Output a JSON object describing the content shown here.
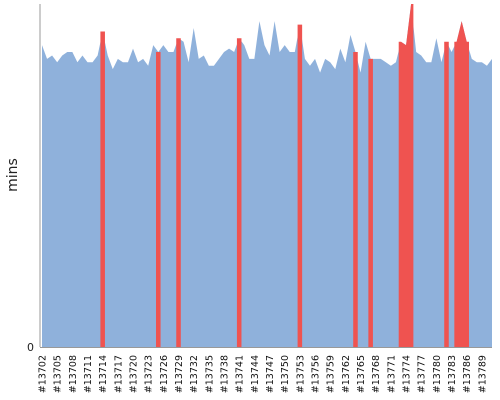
{
  "chart_data": {
    "type": "area",
    "ylabel": "mins",
    "y_ticks": [
      "0"
    ],
    "ylim": [
      0,
      100
    ],
    "colors": {
      "success": "#8fb1db",
      "failure": "#ef5350",
      "axis": "#999999"
    },
    "legend": "none",
    "grid": false,
    "x_tick_labels": [
      "#13702",
      "#13705",
      "#13708",
      "#13711",
      "#13714",
      "#13717",
      "#13720",
      "#13723",
      "#13726",
      "#13729",
      "#13732",
      "#13735",
      "#13738",
      "#13741",
      "#13744",
      "#13747",
      "#13750",
      "#13753",
      "#13756",
      "#13759",
      "#13762",
      "#13765",
      "#13768",
      "#13771",
      "#13774",
      "#13777",
      "#13780",
      "#13783",
      "#13786",
      "#13789"
    ],
    "builds": [
      13702,
      13703,
      13704,
      13705,
      13706,
      13707,
      13708,
      13709,
      13710,
      13711,
      13712,
      13713,
      13714,
      13715,
      13716,
      13717,
      13718,
      13719,
      13720,
      13721,
      13722,
      13723,
      13724,
      13725,
      13726,
      13727,
      13728,
      13729,
      13730,
      13731,
      13732,
      13733,
      13734,
      13735,
      13736,
      13737,
      13738,
      13739,
      13740,
      13741,
      13742,
      13743,
      13744,
      13745,
      13746,
      13747,
      13748,
      13749,
      13750,
      13751,
      13752,
      13753,
      13754,
      13755,
      13756,
      13757,
      13758,
      13759,
      13760,
      13761,
      13762,
      13763,
      13764,
      13765,
      13766,
      13767,
      13768,
      13769,
      13770,
      13771,
      13772,
      13773,
      13774,
      13775,
      13776,
      13777,
      13778,
      13779,
      13780,
      13781,
      13782,
      13783,
      13784,
      13785,
      13786,
      13787,
      13788,
      13789,
      13790,
      13791
    ],
    "values": [
      88,
      84,
      85,
      83,
      85,
      86,
      86,
      83,
      85,
      83,
      83,
      85,
      92,
      85,
      81,
      84,
      83,
      83,
      87,
      83,
      84,
      82,
      88,
      86,
      88,
      86,
      86,
      90,
      89,
      83,
      93,
      84,
      85,
      82,
      82,
      84,
      86,
      87,
      86,
      90,
      88,
      84,
      84,
      95,
      88,
      85,
      95,
      86,
      88,
      86,
      86,
      94,
      84,
      82,
      84,
      80,
      84,
      83,
      81,
      87,
      83,
      91,
      86,
      80,
      89,
      84,
      84,
      84,
      83,
      82,
      83,
      89,
      88,
      100,
      86,
      85,
      83,
      83,
      90,
      83,
      89,
      86,
      89,
      95,
      89,
      84,
      83,
      83,
      82,
      84
    ],
    "failed_builds": [
      13714,
      13725,
      13729,
      13741,
      13753,
      13764,
      13767,
      13773,
      13774,
      13775,
      13782,
      13784,
      13785,
      13786
    ]
  }
}
